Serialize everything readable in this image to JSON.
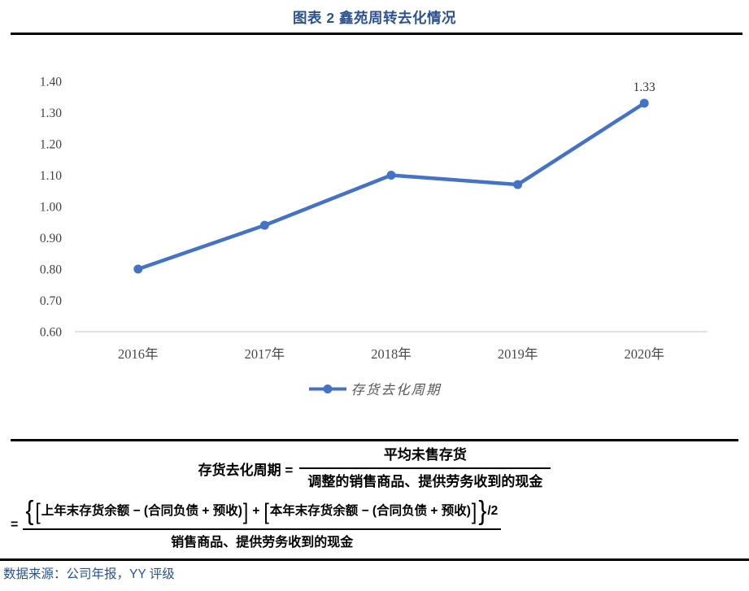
{
  "header": {
    "title": "图表 2 鑫苑周转去化情况"
  },
  "chart_data": {
    "type": "line",
    "title": "图表 2 鑫苑周转去化情况",
    "categories": [
      "2016年",
      "2017年",
      "2018年",
      "2019年",
      "2020年"
    ],
    "series": [
      {
        "name": "存货去化周期",
        "values": [
          0.8,
          0.94,
          1.1,
          1.07,
          1.33
        ]
      }
    ],
    "point_labels": [
      {
        "index": 4,
        "text": "1.33"
      }
    ],
    "ylim": [
      0.6,
      1.4
    ],
    "yticks": [
      "1.40",
      "1.30",
      "1.20",
      "1.10",
      "1.00",
      "0.90",
      "0.80",
      "0.70",
      "0.60"
    ],
    "grid": false,
    "legend": "存货去化周期",
    "legend_position": "bottom",
    "colors": {
      "line": "#4472C4",
      "axis": "#D9D9D9",
      "tick_text": "#404040"
    }
  },
  "formula": {
    "eq1_lhs": "存货去化周期 =",
    "eq1_num": "平均未售存货",
    "eq1_den": "调整的销售商品、提供劳务收到的现金",
    "eq2_eq": "=",
    "eq2_brace_open": "{",
    "eq2_bracket_open1": "[",
    "eq2_term1": "上年末存货余额 − (合同负债 + 预收)",
    "eq2_bracket_close1": "]",
    "eq2_plus": "+",
    "eq2_bracket_open2": "[",
    "eq2_term2": "本年末存货余额 − (合同负债 + 预收)",
    "eq2_bracket_close2": "]",
    "eq2_brace_close": "}",
    "eq2_divisor": "/2",
    "eq2_den": "销售商品、提供劳务收到的现金"
  },
  "footer": {
    "source": "数据来源：公司年报，YY 评级"
  }
}
